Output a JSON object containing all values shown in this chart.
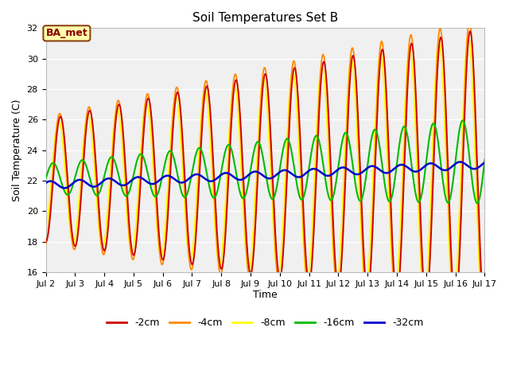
{
  "title": "Soil Temperatures Set B",
  "xlabel": "Time",
  "ylabel": "Soil Temperature (C)",
  "ylim": [
    16,
    32
  ],
  "xlim": [
    0,
    15
  ],
  "yticks": [
    16,
    18,
    20,
    22,
    24,
    26,
    28,
    30,
    32
  ],
  "xtick_labels": [
    "Jul 2",
    "Jul 3",
    "Jul 4",
    "Jul 5",
    "Jul 6",
    "Jul 7",
    "Jul 8",
    "Jul 9",
    "Jul 10",
    "Jul 11",
    "Jul 12",
    "Jul 13",
    "Jul 14",
    "Jul 15",
    "Jul 16",
    "Jul 17"
  ],
  "colors": {
    "-2cm": "#cc0000",
    "-4cm": "#ff8800",
    "-8cm": "#ffff00",
    "-16cm": "#00bb00",
    "-32cm": "#0000cc"
  },
  "annotation_text": "BA_met",
  "bg_color": "#ebebeb",
  "plot_bg": "#f0f0f0",
  "fig_bg": "#ffffff"
}
